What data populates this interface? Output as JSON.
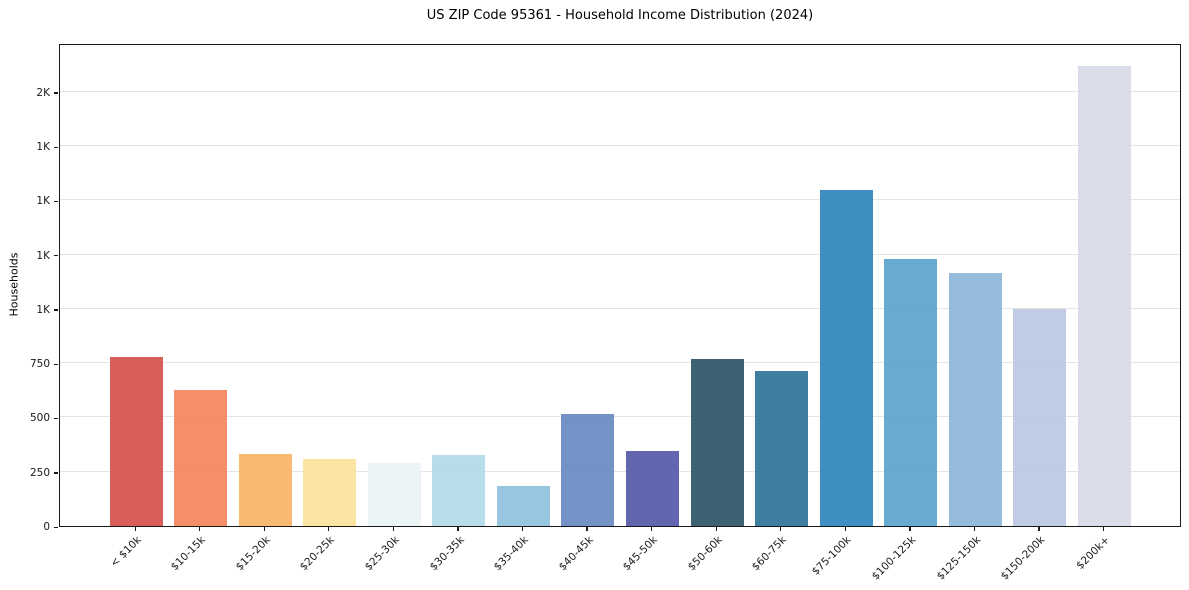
{
  "title": "US ZIP Code 95361 - Household Income Distribution (2024)",
  "chart_data": {
    "type": "bar",
    "title": "US ZIP Code 95361 - Household Income Distribution (2024)",
    "xlabel": "",
    "ylabel": "Households",
    "ylim": [
      0,
      2225
    ],
    "grid": "horizontal",
    "legend": "none",
    "categories": [
      "< $10k",
      "$10-15k",
      "$15-20k",
      "$20-25k",
      "$25-30k",
      "$30-35k",
      "$35-40k",
      "$40-45k",
      "$45-50k",
      "$50-60k",
      "$60-75k",
      "$75-100k",
      "$100-125k",
      "$125-150k",
      "$150-200k",
      "$200k+"
    ],
    "values": [
      780,
      625,
      330,
      310,
      290,
      325,
      185,
      515,
      345,
      770,
      715,
      1550,
      1230,
      1165,
      1000,
      2120
    ],
    "bar_colors": [
      "#d6564f",
      "#f58961",
      "#fab56c",
      "#fce49e",
      "#eaf4f5",
      "#b4dbe7",
      "#92c2de",
      "#6c8dc4",
      "#5a5dab",
      "#34596d",
      "#34789c",
      "#3689c0",
      "#60a6cd",
      "#8fb8db",
      "#bcc9e2",
      "#d9dbe9"
    ],
    "yticks": [
      {
        "value": 0,
        "label": "0"
      },
      {
        "value": 250,
        "label": "250"
      },
      {
        "value": 500,
        "label": "500"
      },
      {
        "value": 750,
        "label": "750"
      },
      {
        "value": 1000,
        "label": "1K"
      },
      {
        "value": 1250,
        "label": "1K"
      },
      {
        "value": 1500,
        "label": "1K"
      },
      {
        "value": 1750,
        "label": "1K"
      },
      {
        "value": 2000,
        "label": "2K"
      }
    ],
    "axis_color": "#1a1a1a",
    "gridline_color": "#e4e4e4",
    "background_color": "#ffffff"
  }
}
